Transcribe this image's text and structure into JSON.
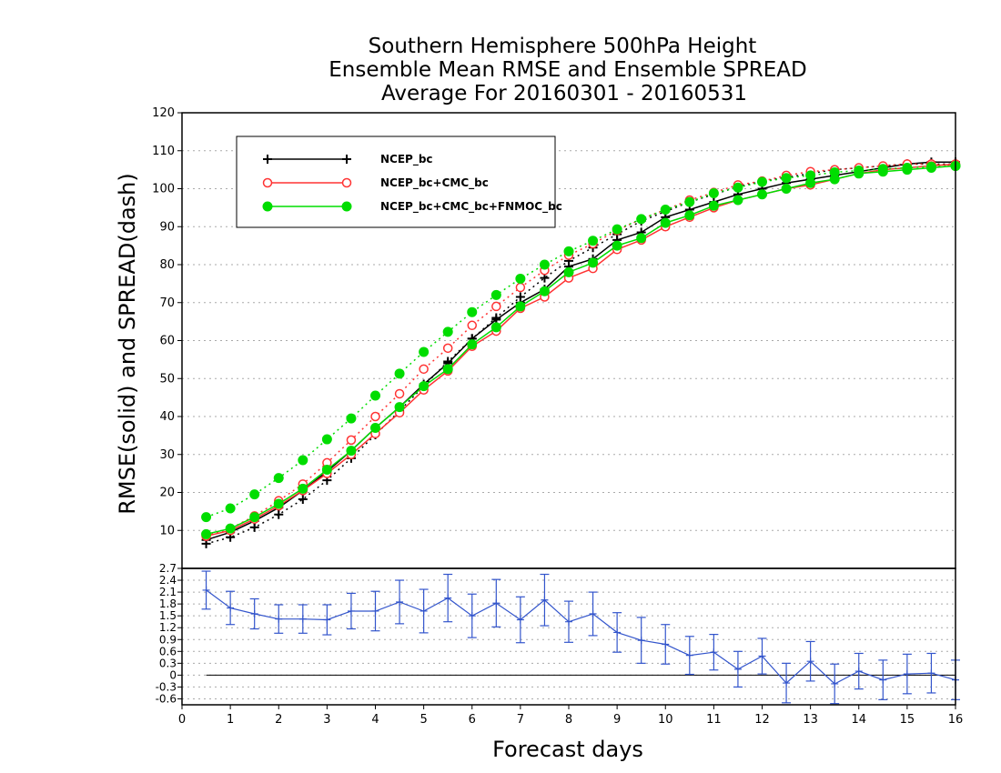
{
  "title_lines": [
    "Southern Hemisphere 500hPa Height",
    "Ensemble Mean RMSE and Ensemble SPREAD",
    "Average For 20160301 - 20160531"
  ],
  "chart_data": [
    {
      "type": "line",
      "ylabel": "RMSE(solid) and SPREAD(dash)",
      "xlim": [
        0,
        16
      ],
      "ylim": [
        0,
        120
      ],
      "yticks": [
        10,
        20,
        30,
        40,
        50,
        60,
        70,
        80,
        90,
        100,
        110,
        120
      ],
      "grid": true,
      "legend_position": "top-left",
      "x": [
        0.5,
        1,
        1.5,
        2,
        2.5,
        3,
        3.5,
        4,
        4.5,
        5,
        5.5,
        6,
        6.5,
        7,
        7.5,
        8,
        8.5,
        9,
        9.5,
        10,
        10.5,
        11,
        11.5,
        12,
        12.5,
        13,
        13.5,
        14,
        14.5,
        15,
        15.5,
        16
      ],
      "series": [
        {
          "name": "NCEP_bc",
          "color": "#000000",
          "marker": "plus",
          "rmse": [
            7.5,
            9.5,
            12.5,
            16,
            20.5,
            25.5,
            31,
            37,
            42.5,
            48.5,
            54,
            60.5,
            65.5,
            70,
            73.5,
            79.5,
            81.5,
            86.5,
            88.5,
            92.5,
            94.5,
            96.5,
            98.5,
            100,
            101.5,
            102.5,
            103.5,
            104.5,
            105.5,
            106.5,
            107,
            107
          ],
          "spread": [
            6.5,
            8.2,
            10.8,
            14.2,
            18.2,
            23.2,
            29,
            35.2,
            41.5,
            48,
            54.5,
            60.5,
            66,
            71.5,
            76.5,
            81,
            84.5,
            88,
            91.5,
            94,
            96.5,
            98.5,
            100.5,
            102,
            103,
            104,
            105,
            105.5,
            106,
            106.5,
            106.5,
            106.5
          ]
        },
        {
          "name": "NCEP_bc+CMC_bc",
          "color": "#ff3333",
          "marker": "open-circle",
          "rmse": [
            8.5,
            10,
            13,
            16.5,
            20.5,
            25,
            30,
            35.5,
            41,
            47,
            52,
            58.5,
            62.5,
            68.5,
            71.5,
            76.5,
            79,
            84,
            86.5,
            90,
            92.5,
            95,
            97,
            98.5,
            100,
            101,
            102.5,
            104,
            105,
            105.5,
            106,
            106.5
          ],
          "spread": [
            8.5,
            10.5,
            13.8,
            17.8,
            22.2,
            27.8,
            33.8,
            40,
            46,
            52.5,
            58,
            64,
            69,
            74,
            78.5,
            82.5,
            85.5,
            89,
            92,
            94.5,
            97,
            99,
            101,
            102,
            103.5,
            104.5,
            105,
            105.5,
            106,
            106.5,
            106.5,
            106
          ]
        },
        {
          "name": "NCEP_bc+CMC_bc+FNMOC_bc",
          "color": "#00dd00",
          "marker": "filled-circle",
          "rmse": [
            9,
            10.5,
            13.5,
            17,
            21,
            26,
            31,
            37,
            42.5,
            48,
            52.5,
            59,
            63.5,
            69,
            73,
            78,
            80.5,
            85,
            87,
            91,
            93,
            95.5,
            97,
            98.5,
            100,
            101.5,
            102.5,
            104,
            104.5,
            105,
            105.5,
            106
          ],
          "spread": [
            13.5,
            15.8,
            19.5,
            23.8,
            28.5,
            34,
            39.5,
            45.5,
            51.3,
            57,
            62.3,
            67.5,
            72,
            76.3,
            80,
            83.5,
            86.3,
            89.3,
            92,
            94.5,
            96.5,
            98.8,
            100.3,
            101.8,
            102.8,
            103.5,
            104.3,
            104.8,
            105.2,
            105.5,
            105.8,
            106
          ]
        }
      ]
    },
    {
      "type": "line",
      "xlabel": "Forecast days",
      "xlim": [
        0,
        16
      ],
      "ylim": [
        -0.75,
        2.7
      ],
      "xticks": [
        0,
        1,
        2,
        3,
        4,
        5,
        6,
        7,
        8,
        9,
        10,
        11,
        12,
        13,
        14,
        15,
        16
      ],
      "yticks": [
        "2.7",
        "2.4",
        "2.1",
        "1.8",
        "1.5",
        "1.2",
        "0.9",
        "0.6",
        "0.3",
        "0",
        "-0.3",
        "-0.6"
      ],
      "reference_line": 0,
      "series": [
        {
          "color": "#3355cc",
          "x": [
            0.5,
            1,
            1.5,
            2,
            2.5,
            3,
            3.5,
            4,
            4.5,
            5,
            5.5,
            6,
            6.5,
            7,
            7.5,
            8,
            8.5,
            9,
            9.5,
            10,
            10.5,
            11,
            11.5,
            12,
            12.5,
            13,
            13.5,
            14,
            14.5,
            15,
            15.5,
            16
          ],
          "values": [
            2.15,
            1.7,
            1.55,
            1.42,
            1.42,
            1.4,
            1.62,
            1.62,
            1.85,
            1.62,
            1.95,
            1.5,
            1.82,
            1.4,
            1.9,
            1.35,
            1.55,
            1.08,
            0.88,
            0.78,
            0.5,
            0.58,
            0.15,
            0.48,
            -0.2,
            0.35,
            -0.22,
            0.1,
            -0.12,
            0.03,
            0.05,
            -0.12
          ],
          "error": [
            0.48,
            0.42,
            0.38,
            0.36,
            0.36,
            0.38,
            0.45,
            0.5,
            0.55,
            0.55,
            0.6,
            0.55,
            0.6,
            0.58,
            0.65,
            0.52,
            0.55,
            0.5,
            0.58,
            0.5,
            0.48,
            0.45,
            0.45,
            0.45,
            0.5,
            0.5,
            0.5,
            0.45,
            0.5,
            0.5,
            0.5,
            0.5
          ]
        }
      ]
    }
  ]
}
